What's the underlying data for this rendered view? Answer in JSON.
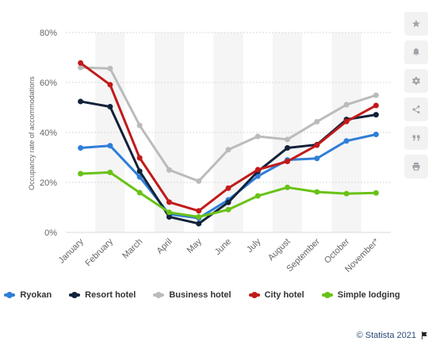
{
  "chart_data": {
    "type": "line",
    "categories": [
      "January",
      "February",
      "March",
      "April",
      "May",
      "June",
      "July",
      "August",
      "September",
      "October",
      "November*"
    ],
    "ylabel": "Occupancy rate of accommodations",
    "ylim": [
      0,
      80
    ],
    "yticks": [
      "0%",
      "20%",
      "40%",
      "60%",
      "80%"
    ],
    "ytick_values": [
      0,
      20,
      40,
      60,
      80
    ],
    "grid": true,
    "legend_position": "bottom",
    "series": [
      {
        "name": "Ryokan",
        "color": "#2f7ed8",
        "values": [
          33.8,
          34.7,
          22.2,
          7.3,
          5.7,
          13.0,
          22.5,
          29.0,
          29.6,
          36.6,
          39.2
        ]
      },
      {
        "name": "Resort hotel",
        "color": "#12223a",
        "values": [
          52.4,
          50.3,
          24.5,
          6.2,
          3.5,
          12.0,
          24.4,
          33.8,
          35.1,
          45.2,
          47.1
        ]
      },
      {
        "name": "Business hotel",
        "color": "#bbbbbb",
        "values": [
          66.0,
          65.6,
          42.8,
          25.0,
          20.5,
          33.1,
          38.4,
          37.2,
          44.3,
          51.1,
          54.9
        ]
      },
      {
        "name": "City hotel",
        "color": "#c11a1a",
        "values": [
          67.8,
          59.1,
          29.8,
          12.1,
          8.6,
          17.7,
          25.1,
          28.4,
          34.9,
          44.4,
          50.8
        ]
      },
      {
        "name": "Simple lodging",
        "color": "#69c216",
        "values": [
          23.5,
          24.0,
          15.9,
          8.0,
          6.2,
          9.1,
          14.6,
          18.0,
          16.2,
          15.5,
          15.8
        ]
      }
    ]
  },
  "toolbar": {
    "icons": [
      "star-icon",
      "bell-icon",
      "gear-icon",
      "share-icon",
      "quote-icon",
      "print-icon"
    ]
  },
  "footer": {
    "credit": "© Statista 2021"
  }
}
